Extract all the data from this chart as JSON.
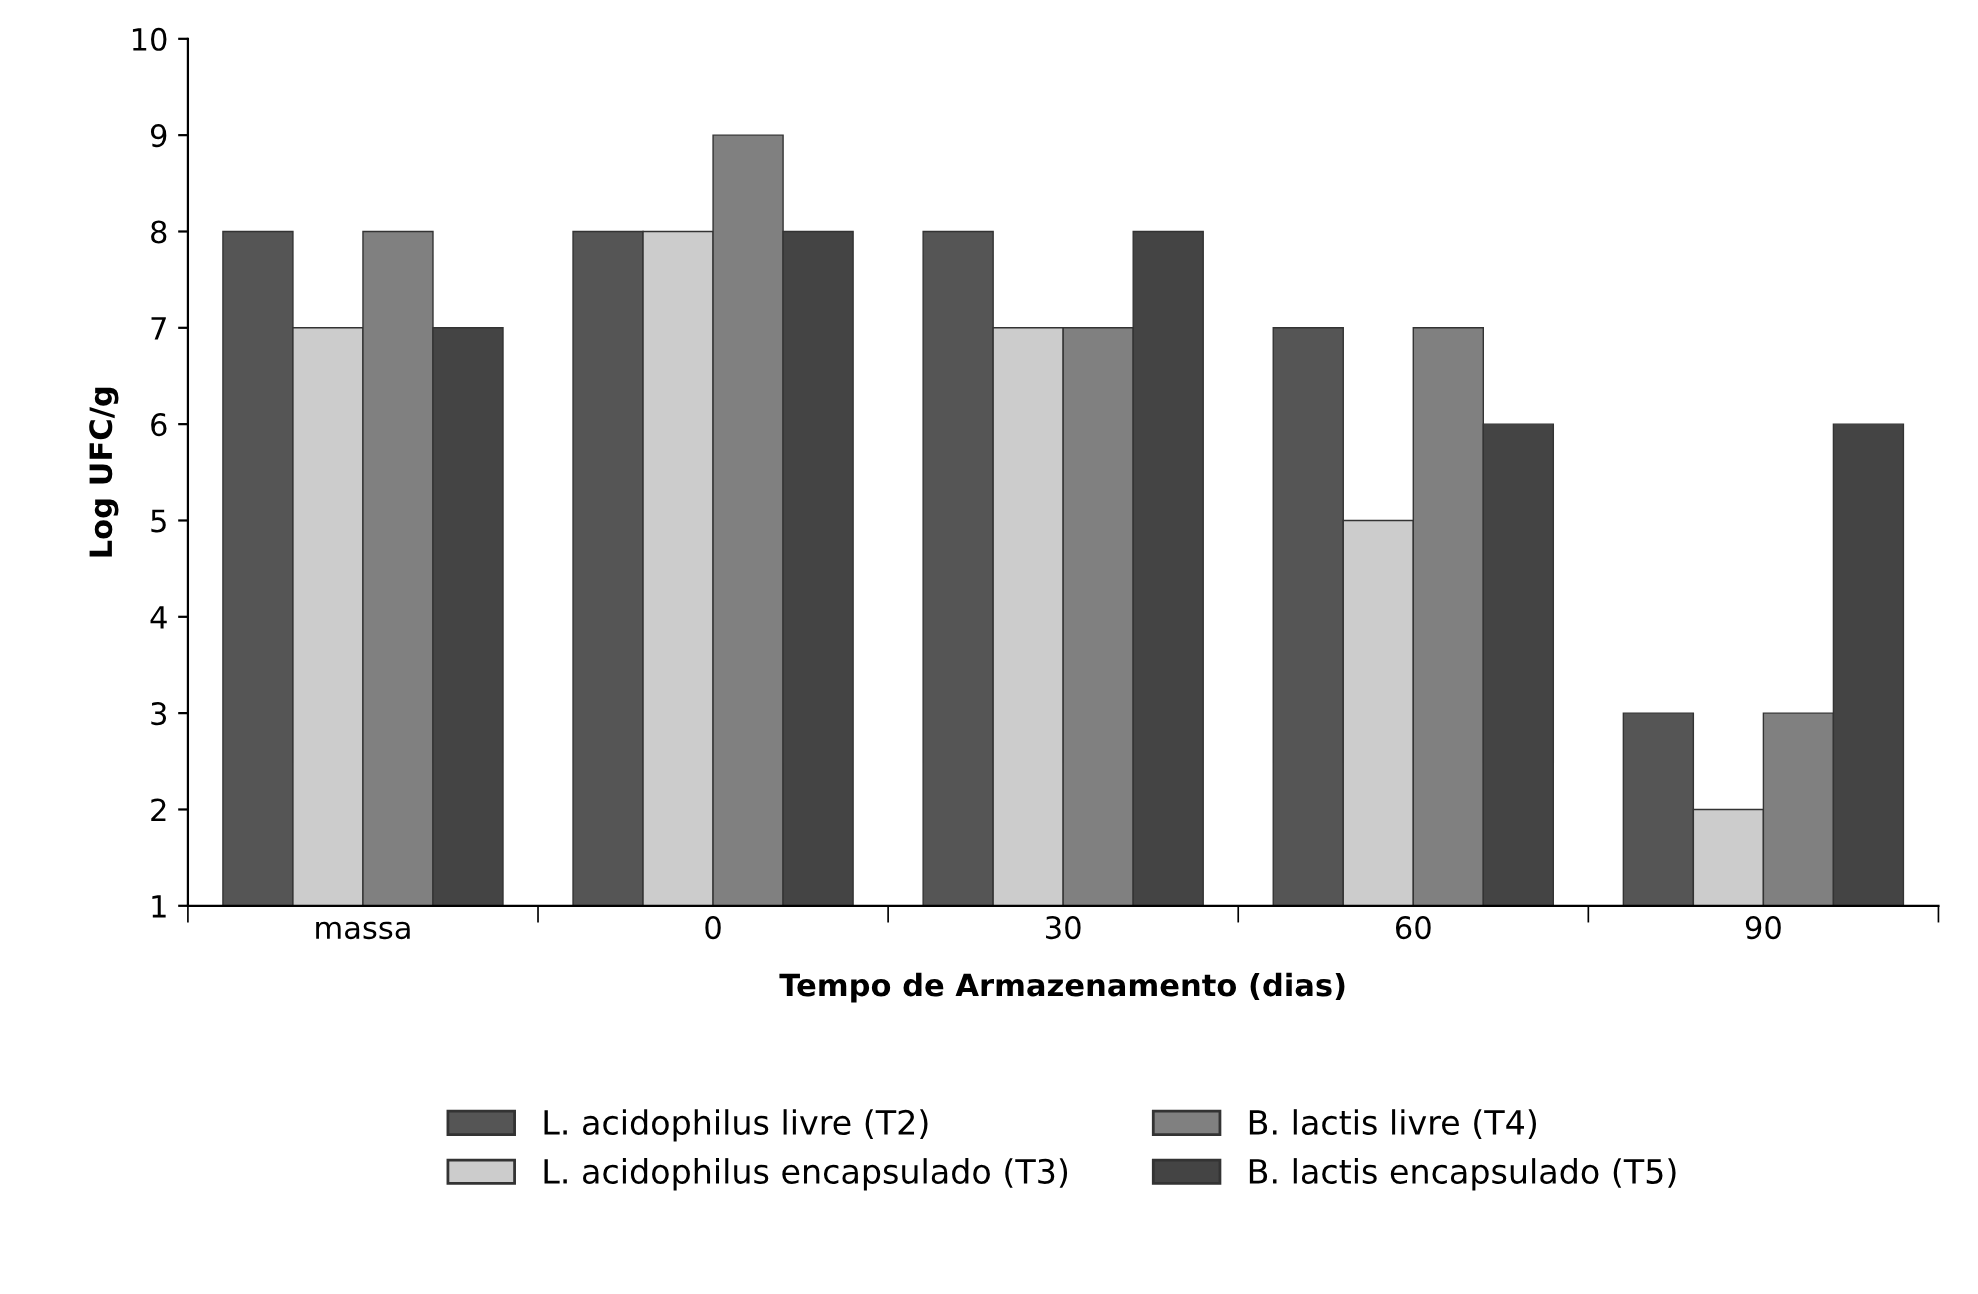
{
  "chart_data": {
    "type": "bar",
    "xlabel": "Tempo de Armazenamento (dias)",
    "ylabel": "Log UFC/g",
    "categories": [
      "massa",
      "0",
      "30",
      "60",
      "90"
    ],
    "series": [
      {
        "name": "L. acidophilus livre (T2)",
        "color": "#555555",
        "values": [
          8,
          8,
          8,
          7,
          3
        ]
      },
      {
        "name": "L. acidophilus encapsulado (T3)",
        "color": "#cccccc",
        "values": [
          7,
          8,
          7,
          5,
          2
        ]
      },
      {
        "name": "B. lactis livre (T4)",
        "color": "#808080",
        "values": [
          8,
          9,
          7,
          7,
          3
        ]
      },
      {
        "name": "B. lactis encapsulado (T5)",
        "color": "#444444",
        "values": [
          7,
          8,
          8,
          6,
          6
        ]
      }
    ],
    "ylim": [
      1,
      10
    ],
    "yticks": [
      1,
      2,
      3,
      4,
      5,
      6,
      7,
      8,
      9,
      10
    ],
    "grid": false,
    "legend": "bottom"
  }
}
